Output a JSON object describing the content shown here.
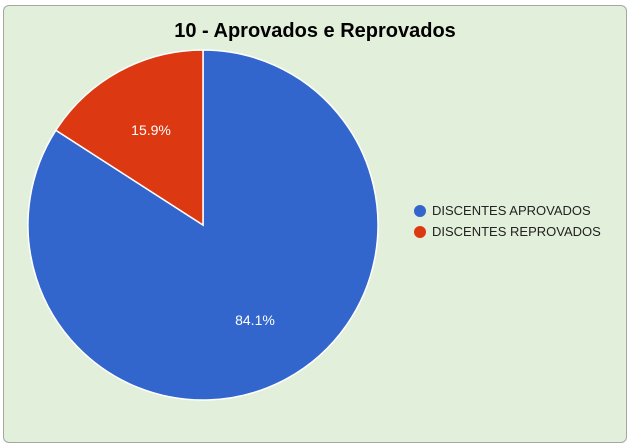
{
  "chart_data": {
    "type": "pie",
    "title": "10 - Aprovados e Reprovados",
    "slices": [
      {
        "label": "DISCENTES APROVADOS",
        "value": 84.1,
        "value_label": "84.1%",
        "color": "#3366cc"
      },
      {
        "label": "DISCENTES REPROVADOS",
        "value": 15.9,
        "value_label": "15.9%",
        "color": "#dc3912"
      }
    ],
    "legend_position": "right"
  },
  "colors": {
    "background": "#e2efda",
    "border": "#a6a6a6"
  }
}
